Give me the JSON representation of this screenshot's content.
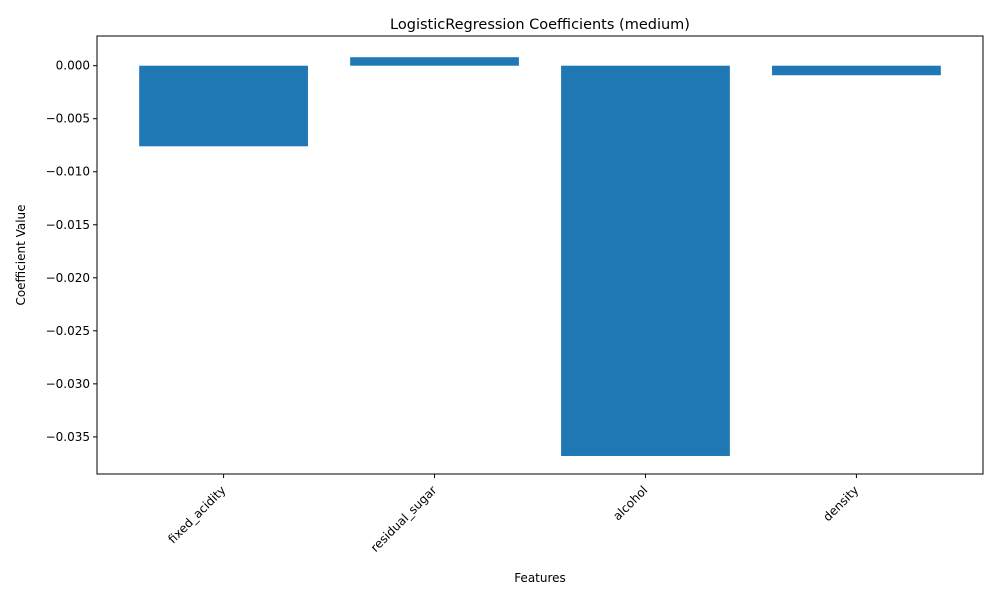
{
  "chart_data": {
    "type": "bar",
    "title": "LogisticRegression Coefficients (medium)",
    "xlabel": "Features",
    "ylabel": "Coefficient Value",
    "categories": [
      "fixed_acidity",
      "residual_sugar",
      "alcohol",
      "density"
    ],
    "values": [
      -0.0076,
      0.0008,
      -0.0368,
      -0.0009
    ],
    "ylim": [
      -0.0385,
      0.0028
    ],
    "yticks": [
      0.0,
      -0.005,
      -0.01,
      -0.015,
      -0.02,
      -0.025,
      -0.03,
      -0.035
    ],
    "ytick_labels": [
      "0.000",
      "−0.005",
      "−0.010",
      "−0.015",
      "−0.020",
      "−0.025",
      "−0.030",
      "−0.035"
    ],
    "grid": false,
    "legend": "none",
    "bar_color": "#1f77b4"
  }
}
